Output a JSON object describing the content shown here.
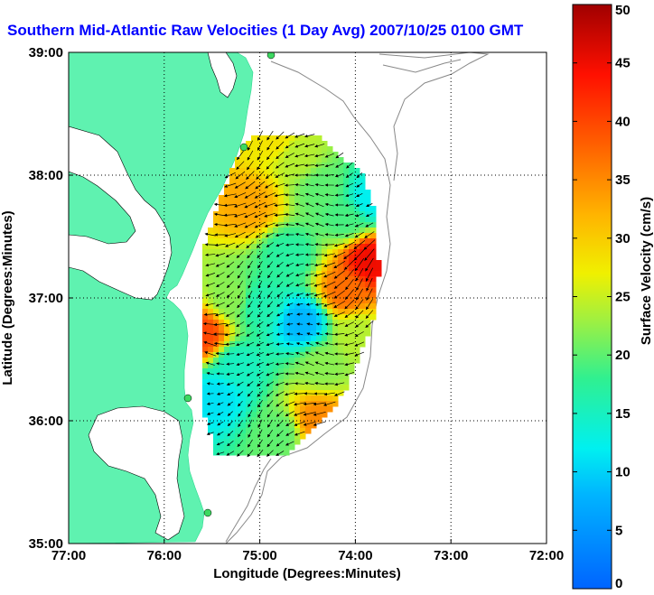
{
  "chart_data": {
    "type": "vector-map",
    "title": "Southern Mid-Atlantic Raw Velocities (1 Day Avg) 2007/10/25 0100 GMT",
    "title_color": "#0000ff",
    "xlabel": "Longitude (Degrees:Minutes)",
    "ylabel": "Latitude (Degrees:Minutes)",
    "xlim": [
      -77,
      -72
    ],
    "ylim": [
      35,
      39
    ],
    "x_ticks": [
      -77,
      -76,
      -75,
      -74,
      -73,
      -72
    ],
    "x_tick_labels": [
      "77:00",
      "76:00",
      "75:00",
      "74:00",
      "73:00",
      "72:00"
    ],
    "y_ticks": [
      35,
      36,
      37,
      38,
      39
    ],
    "y_tick_labels": [
      "35:00",
      "36:00",
      "37:00",
      "38:00",
      "39:00"
    ],
    "grid": "dotted",
    "land_color": "#5ff2b0",
    "colorbar": {
      "label": "Surface Velocity (cm/s)",
      "min": 0,
      "max": 50,
      "ticks": [
        0,
        5,
        10,
        15,
        20,
        25,
        30,
        35,
        40,
        45,
        50
      ],
      "tick_labels": [
        "0",
        "5",
        "10",
        "15",
        "20",
        "25",
        "30",
        "35",
        "40",
        "45",
        "50"
      ]
    },
    "speed_blobs": [
      {
        "lon": -74.85,
        "lat": 38.3,
        "speed": 28
      },
      {
        "lon": -75.1,
        "lat": 37.75,
        "speed": 33
      },
      {
        "lon": -74.6,
        "lat": 38.15,
        "speed": 24
      },
      {
        "lon": -74.35,
        "lat": 37.9,
        "speed": 20
      },
      {
        "lon": -74.1,
        "lat": 37.65,
        "speed": 19
      },
      {
        "lon": -73.85,
        "lat": 37.8,
        "speed": 12
      },
      {
        "lon": -73.85,
        "lat": 37.3,
        "speed": 45
      },
      {
        "lon": -74.1,
        "lat": 37.05,
        "speed": 37
      },
      {
        "lon": -74.7,
        "lat": 37.35,
        "speed": 17
      },
      {
        "lon": -74.55,
        "lat": 36.8,
        "speed": 8
      },
      {
        "lon": -75.0,
        "lat": 36.95,
        "speed": 16
      },
      {
        "lon": -75.3,
        "lat": 37.0,
        "speed": 22
      },
      {
        "lon": -75.25,
        "lat": 36.45,
        "speed": 15
      },
      {
        "lon": -75.45,
        "lat": 36.2,
        "speed": 11
      },
      {
        "lon": -74.35,
        "lat": 36.45,
        "speed": 22
      },
      {
        "lon": -74.0,
        "lat": 36.7,
        "speed": 24
      },
      {
        "lon": -74.4,
        "lat": 36.0,
        "speed": 35
      },
      {
        "lon": -74.8,
        "lat": 35.9,
        "speed": 20
      },
      {
        "lon": -75.6,
        "lat": 36.7,
        "speed": 40
      }
    ],
    "coverage_region_lonlat": [
      [
        -75.02,
        38.42
      ],
      [
        -74.75,
        38.5
      ],
      [
        -74.45,
        38.35
      ],
      [
        -74.1,
        38.12
      ],
      [
        -73.92,
        38.0
      ],
      [
        -73.8,
        37.7
      ],
      [
        -73.75,
        37.25
      ],
      [
        -73.78,
        36.9
      ],
      [
        -73.95,
        36.55
      ],
      [
        -74.1,
        36.25
      ],
      [
        -74.4,
        35.95
      ],
      [
        -74.75,
        35.72
      ],
      [
        -75.45,
        35.72
      ],
      [
        -75.62,
        36.12
      ],
      [
        -75.62,
        36.75
      ],
      [
        -75.6,
        37.4
      ],
      [
        -75.4,
        37.85
      ],
      [
        -75.2,
        38.2
      ]
    ],
    "flow_direction_deg": 200
  }
}
